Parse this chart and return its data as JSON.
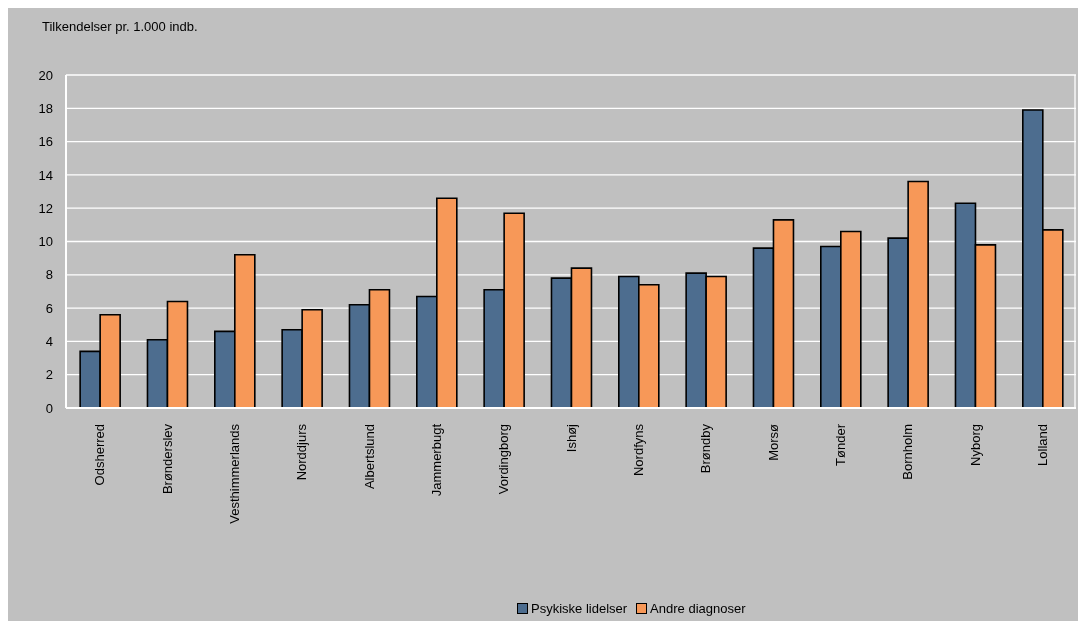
{
  "chart_data": {
    "type": "bar",
    "ylabel": "Tilkendelser pr. 1.000 indb.",
    "categories": [
      "Odsherred",
      "Brønderslev",
      "Vesthimmerlands",
      "Norddjurs",
      "Albertslund",
      "Jammerbugt",
      "Vordingborg",
      "Ishøj",
      "Nordfyns",
      "Brøndby",
      "Morsø",
      "Tønder",
      "Bornholm",
      "Nyborg",
      "Lolland"
    ],
    "series": [
      {
        "name": "Psykiske lidelser",
        "color": "#4d6d8f",
        "values": [
          3.4,
          4.1,
          4.6,
          4.7,
          6.2,
          6.7,
          7.1,
          7.8,
          7.9,
          8.1,
          9.6,
          9.7,
          10.2,
          12.3,
          17.9
        ]
      },
      {
        "name": "Andre diagnoser",
        "color": "#f79858",
        "values": [
          5.6,
          6.4,
          9.2,
          5.9,
          7.1,
          12.6,
          11.7,
          8.4,
          7.4,
          7.9,
          11.3,
          10.6,
          13.6,
          9.8,
          10.7
        ]
      }
    ],
    "ylim": [
      0,
      20
    ],
    "yticks": [
      0,
      2,
      4,
      6,
      8,
      10,
      12,
      14,
      16,
      18,
      20
    ],
    "grid": "y",
    "legend": "bottom"
  }
}
